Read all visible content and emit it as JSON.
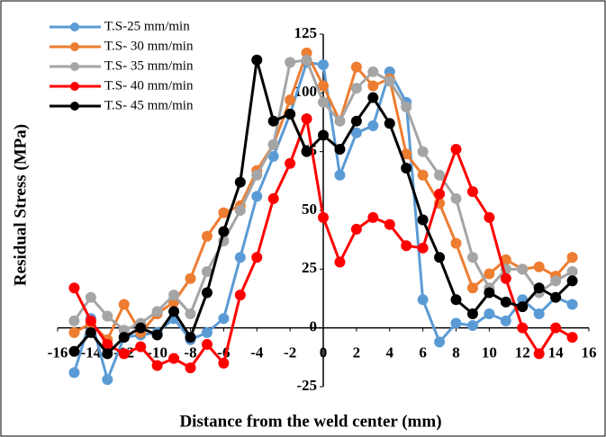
{
  "chart_data": {
    "type": "line",
    "y_label": "Residual Stress (MPa)",
    "x_label": "Distance from the weld center (mm)",
    "x": [
      -15,
      -14,
      -13,
      -12,
      -11,
      -10,
      -9,
      -8,
      -7,
      -6,
      -5,
      -4,
      -3,
      -2,
      -1,
      0,
      1,
      2,
      3,
      4,
      5,
      6,
      7,
      8,
      9,
      10,
      11,
      12,
      13,
      14,
      15
    ],
    "xlim": [
      -16,
      16
    ],
    "xticks": [
      -16,
      -14,
      -12,
      -10,
      -8,
      -6,
      -4,
      -2,
      0,
      2,
      4,
      6,
      8,
      10,
      12,
      14,
      16
    ],
    "ylim": [
      -25,
      125
    ],
    "yticks": [
      -25,
      0,
      25,
      50,
      75,
      100,
      125
    ],
    "grid": false,
    "legend": "upper-left",
    "series": [
      {
        "name": "T.S-25 mm/min",
        "color": "#5b9bd5",
        "values": [
          -19,
          4,
          -22,
          -4,
          -3,
          -2,
          4,
          -5,
          -2,
          4,
          30,
          56,
          73,
          91,
          113,
          112,
          65,
          83,
          86,
          109,
          96,
          12,
          -6,
          2,
          1,
          6,
          3,
          12,
          6,
          13,
          10
        ]
      },
      {
        "name": "T.S- 30 mm/min",
        "color": "#ed7d31",
        "values": [
          -2,
          2,
          -5,
          10,
          -2,
          6,
          11,
          21,
          39,
          49,
          52,
          67,
          78,
          97,
          117,
          103,
          88,
          111,
          103,
          106,
          74,
          65,
          53,
          36,
          17,
          23,
          29,
          25,
          26,
          22,
          30
        ]
      },
      {
        "name": "T.S- 35 mm/min",
        "color": "#a5a5a5",
        "values": [
          3,
          13,
          5,
          -1,
          2,
          7,
          14,
          6,
          24,
          37,
          50,
          65,
          78,
          113,
          114,
          96,
          88,
          102,
          109,
          105,
          94,
          75,
          65,
          55,
          30,
          17,
          25,
          25,
          15,
          20,
          24
        ]
      },
      {
        "name": "T.S- 40 mm/min",
        "color": "#ff0000",
        "values": [
          17,
          3,
          -7,
          -11,
          -8,
          -16,
          -13,
          -17,
          -7,
          -15,
          14,
          30,
          55,
          70,
          89,
          47,
          28,
          42,
          47,
          44,
          35,
          34,
          57,
          76,
          58,
          47,
          21,
          0,
          -11,
          0,
          -4
        ]
      },
      {
        "name": "T.S- 45 mm/min",
        "color": "#000000",
        "values": [
          -10,
          -2,
          -11,
          -4,
          0,
          -3,
          7,
          -4,
          15,
          41,
          62,
          114,
          88,
          91,
          75,
          82,
          76,
          88,
          98,
          87,
          68,
          46,
          30,
          12,
          6,
          15,
          11,
          9,
          17,
          13,
          20
        ]
      }
    ]
  }
}
